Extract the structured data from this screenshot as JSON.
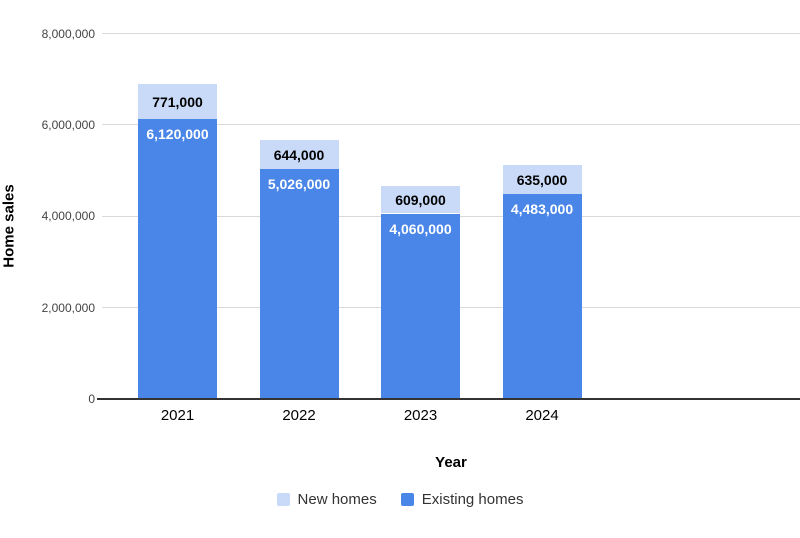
{
  "chart_data": {
    "type": "bar",
    "stacked": true,
    "title": "",
    "xlabel": "Year",
    "ylabel": "Home sales",
    "categories": [
      "2021",
      "2022",
      "2023",
      "2024"
    ],
    "series": [
      {
        "name": "New homes",
        "color": "#c9daf8",
        "label_color": "#000000",
        "values": [
          771000,
          644000,
          609000,
          635000
        ],
        "labels": [
          "771,000",
          "644,000",
          "609,000",
          "635,000"
        ]
      },
      {
        "name": "Existing homes",
        "color": "#4a86e8",
        "label_color": "#ffffff",
        "values": [
          6120000,
          5026000,
          4060000,
          4483000
        ],
        "labels": [
          "6,120,000",
          "5,026,000",
          "4,060,000",
          "4,483,000"
        ]
      }
    ],
    "y_axis": {
      "range": [
        0,
        8000000
      ],
      "ticks": [
        0,
        2000000,
        4000000,
        6000000,
        8000000
      ],
      "tick_labels": [
        "0",
        "2,000,000",
        "4,000,000",
        "6,000,000",
        "8,000,000"
      ]
    },
    "legend_position": "bottom",
    "grid": true,
    "colors": {
      "gridline": "#d9d9d9",
      "baseline": "#333333",
      "tick_text": "#444444"
    }
  }
}
